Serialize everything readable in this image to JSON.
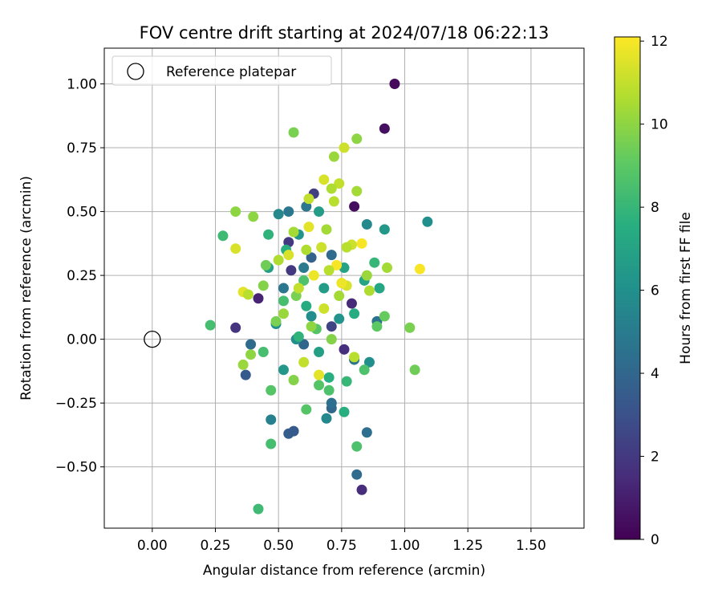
{
  "chart_data": {
    "type": "scatter",
    "title": "FOV centre drift starting at 2024/07/18 06:22:13",
    "xlabel": "Angular distance from reference (arcmin)",
    "ylabel": "Rotation from reference (arcmin)",
    "xlim": [
      -0.19,
      1.71
    ],
    "ylim": [
      -0.74,
      1.14
    ],
    "x_ticks": [
      "0.00",
      "0.25",
      "0.50",
      "0.75",
      "1.00",
      "1.25",
      "1.50"
    ],
    "y_ticks": [
      "−0.50",
      "−0.25",
      "0.00",
      "0.25",
      "0.50",
      "0.75",
      "1.00"
    ],
    "grid": true,
    "legend": {
      "placement": "top-left",
      "entries": [
        "Reference platepar"
      ]
    },
    "reference_point": {
      "x": 0.0,
      "y": 0.0,
      "label": "Reference platepar"
    },
    "colorbar": {
      "label": "Hours from first FF file",
      "min": 0,
      "max": 12.1,
      "ticks": [
        "0",
        "2",
        "4",
        "6",
        "8",
        "10",
        "12"
      ],
      "colormap": "viridis"
    },
    "points": [
      {
        "x": 0.96,
        "y": 1.0,
        "c": 0.3
      },
      {
        "x": 0.92,
        "y": 0.825,
        "c": 0.5
      },
      {
        "x": 0.8,
        "y": 0.52,
        "c": 0.4
      },
      {
        "x": 0.42,
        "y": 0.16,
        "c": 1.2
      },
      {
        "x": 0.33,
        "y": 0.045,
        "c": 1.8
      },
      {
        "x": 0.83,
        "y": -0.59,
        "c": 1.5
      },
      {
        "x": 0.54,
        "y": 0.38,
        "c": 2.0
      },
      {
        "x": 0.64,
        "y": 0.57,
        "c": 2.2
      },
      {
        "x": 0.76,
        "y": -0.04,
        "c": 1.6
      },
      {
        "x": 0.71,
        "y": 0.05,
        "c": 2.4
      },
      {
        "x": 0.55,
        "y": 0.27,
        "c": 2.0
      },
      {
        "x": 0.79,
        "y": 0.14,
        "c": 1.4
      },
      {
        "x": 0.37,
        "y": -0.14,
        "c": 3.4
      },
      {
        "x": 0.54,
        "y": -0.37,
        "c": 3.6
      },
      {
        "x": 0.56,
        "y": -0.36,
        "c": 3.4
      },
      {
        "x": 0.81,
        "y": -0.53,
        "c": 4.2
      },
      {
        "x": 0.85,
        "y": -0.365,
        "c": 4.4
      },
      {
        "x": 0.8,
        "y": -0.08,
        "c": 4.6
      },
      {
        "x": 0.71,
        "y": -0.27,
        "c": 4.0
      },
      {
        "x": 0.71,
        "y": -0.25,
        "c": 4.4
      },
      {
        "x": 0.39,
        "y": -0.02,
        "c": 4.2
      },
      {
        "x": 0.54,
        "y": 0.5,
        "c": 4.8
      },
      {
        "x": 0.61,
        "y": 0.52,
        "c": 4.8
      },
      {
        "x": 0.89,
        "y": 0.07,
        "c": 4.5
      },
      {
        "x": 0.63,
        "y": 0.32,
        "c": 3.8
      },
      {
        "x": 0.71,
        "y": 0.33,
        "c": 4.2
      },
      {
        "x": 0.52,
        "y": 0.2,
        "c": 4.8
      },
      {
        "x": 0.6,
        "y": -0.02,
        "c": 4.0
      },
      {
        "x": 0.47,
        "y": -0.315,
        "c": 5.2
      },
      {
        "x": 0.69,
        "y": -0.31,
        "c": 5.6
      },
      {
        "x": 0.85,
        "y": 0.45,
        "c": 5.6
      },
      {
        "x": 0.5,
        "y": 0.49,
        "c": 5.6
      },
      {
        "x": 0.6,
        "y": 0.28,
        "c": 5.0
      },
      {
        "x": 0.86,
        "y": -0.09,
        "c": 6.0
      },
      {
        "x": 0.57,
        "y": 0.0,
        "c": 6.0
      },
      {
        "x": 1.09,
        "y": 0.46,
        "c": 6.0
      },
      {
        "x": 0.92,
        "y": 0.43,
        "c": 6.4
      },
      {
        "x": 0.58,
        "y": 0.41,
        "c": 6.2
      },
      {
        "x": 0.66,
        "y": 0.5,
        "c": 6.6
      },
      {
        "x": 0.74,
        "y": 0.08,
        "c": 6.2
      },
      {
        "x": 0.63,
        "y": 0.09,
        "c": 5.8
      },
      {
        "x": 0.49,
        "y": 0.06,
        "c": 6.0
      },
      {
        "x": 0.68,
        "y": 0.2,
        "c": 6.6
      },
      {
        "x": 0.52,
        "y": -0.12,
        "c": 6.4
      },
      {
        "x": 0.46,
        "y": 0.28,
        "c": 6.8
      },
      {
        "x": 0.76,
        "y": 0.28,
        "c": 7.0
      },
      {
        "x": 0.84,
        "y": 0.23,
        "c": 7.0
      },
      {
        "x": 0.66,
        "y": -0.05,
        "c": 6.8
      },
      {
        "x": 0.9,
        "y": 0.2,
        "c": 7.2
      },
      {
        "x": 0.8,
        "y": 0.1,
        "c": 7.4
      },
      {
        "x": 0.76,
        "y": -0.285,
        "c": 7.6
      },
      {
        "x": 0.61,
        "y": 0.13,
        "c": 7.4
      },
      {
        "x": 0.46,
        "y": 0.41,
        "c": 7.8
      },
      {
        "x": 0.77,
        "y": -0.165,
        "c": 8.0
      },
      {
        "x": 0.53,
        "y": 0.35,
        "c": 7.6
      },
      {
        "x": 0.7,
        "y": -0.15,
        "c": 7.6
      },
      {
        "x": 0.58,
        "y": 0.01,
        "c": 7.8
      },
      {
        "x": 0.88,
        "y": 0.3,
        "c": 8.0
      },
      {
        "x": 0.44,
        "y": -0.05,
        "c": 8.4
      },
      {
        "x": 0.47,
        "y": -0.41,
        "c": 8.4
      },
      {
        "x": 0.42,
        "y": -0.665,
        "c": 8.2
      },
      {
        "x": 0.23,
        "y": 0.055,
        "c": 8.4
      },
      {
        "x": 0.28,
        "y": 0.405,
        "c": 8.2
      },
      {
        "x": 0.84,
        "y": -0.12,
        "c": 8.6
      },
      {
        "x": 0.81,
        "y": -0.42,
        "c": 8.6
      },
      {
        "x": 0.7,
        "y": -0.2,
        "c": 8.6
      },
      {
        "x": 0.61,
        "y": -0.275,
        "c": 8.8
      },
      {
        "x": 0.52,
        "y": 0.15,
        "c": 8.4
      },
      {
        "x": 0.6,
        "y": 0.23,
        "c": 8.6
      },
      {
        "x": 0.65,
        "y": 0.04,
        "c": 8.8
      },
      {
        "x": 0.66,
        "y": -0.18,
        "c": 8.8
      },
      {
        "x": 0.47,
        "y": -0.2,
        "c": 8.8
      },
      {
        "x": 0.89,
        "y": 0.05,
        "c": 9.0
      },
      {
        "x": 1.04,
        "y": -0.12,
        "c": 9.4
      },
      {
        "x": 1.02,
        "y": 0.045,
        "c": 9.6
      },
      {
        "x": 0.92,
        "y": 0.09,
        "c": 9.2
      },
      {
        "x": 0.56,
        "y": 0.81,
        "c": 9.6
      },
      {
        "x": 0.81,
        "y": 0.785,
        "c": 10.0
      },
      {
        "x": 0.72,
        "y": 0.715,
        "c": 10.2
      },
      {
        "x": 0.33,
        "y": 0.5,
        "c": 10.0
      },
      {
        "x": 0.4,
        "y": 0.48,
        "c": 10.0
      },
      {
        "x": 0.44,
        "y": 0.21,
        "c": 9.8
      },
      {
        "x": 0.39,
        "y": -0.06,
        "c": 10.0
      },
      {
        "x": 0.36,
        "y": -0.1,
        "c": 10.2
      },
      {
        "x": 0.76,
        "y": 0.75,
        "c": 11.2
      },
      {
        "x": 0.81,
        "y": 0.58,
        "c": 10.4
      },
      {
        "x": 0.74,
        "y": 0.61,
        "c": 11.0
      },
      {
        "x": 0.68,
        "y": 0.625,
        "c": 11.4
      },
      {
        "x": 0.71,
        "y": 0.59,
        "c": 10.6
      },
      {
        "x": 0.72,
        "y": 0.54,
        "c": 10.8
      },
      {
        "x": 0.33,
        "y": 0.355,
        "c": 11.4
      },
      {
        "x": 0.36,
        "y": 0.185,
        "c": 11.6
      },
      {
        "x": 0.38,
        "y": 0.175,
        "c": 10.8
      },
      {
        "x": 1.06,
        "y": 0.275,
        "c": 12.0
      },
      {
        "x": 0.83,
        "y": 0.375,
        "c": 12.0
      },
      {
        "x": 0.79,
        "y": 0.37,
        "c": 11.2
      },
      {
        "x": 0.62,
        "y": 0.44,
        "c": 11.6
      },
      {
        "x": 0.56,
        "y": 0.42,
        "c": 10.4
      },
      {
        "x": 0.5,
        "y": 0.31,
        "c": 10.6
      },
      {
        "x": 0.64,
        "y": 0.25,
        "c": 11.8
      },
      {
        "x": 0.73,
        "y": 0.29,
        "c": 12.0
      },
      {
        "x": 0.77,
        "y": 0.21,
        "c": 11.4
      },
      {
        "x": 0.85,
        "y": 0.25,
        "c": 10.2
      },
      {
        "x": 0.52,
        "y": 0.1,
        "c": 10.2
      },
      {
        "x": 0.66,
        "y": -0.14,
        "c": 11.6
      },
      {
        "x": 0.45,
        "y": 0.29,
        "c": 9.4
      },
      {
        "x": 0.57,
        "y": 0.17,
        "c": 9.6
      },
      {
        "x": 0.8,
        "y": -0.07,
        "c": 10.8
      },
      {
        "x": 0.67,
        "y": 0.36,
        "c": 11.2
      },
      {
        "x": 0.62,
        "y": 0.55,
        "c": 11.0
      },
      {
        "x": 0.54,
        "y": 0.33,
        "c": 11.4
      },
      {
        "x": 0.68,
        "y": 0.12,
        "c": 11.2
      },
      {
        "x": 0.58,
        "y": 0.2,
        "c": 11.0
      },
      {
        "x": 0.74,
        "y": 0.17,
        "c": 10.4
      },
      {
        "x": 0.63,
        "y": 0.05,
        "c": 10.0
      },
      {
        "x": 0.56,
        "y": -0.16,
        "c": 9.8
      },
      {
        "x": 0.49,
        "y": 0.07,
        "c": 9.6
      },
      {
        "x": 0.75,
        "y": 0.22,
        "c": 11.8
      },
      {
        "x": 0.61,
        "y": 0.35,
        "c": 10.6
      },
      {
        "x": 0.7,
        "y": 0.27,
        "c": 10.8
      },
      {
        "x": 0.93,
        "y": 0.28,
        "c": 10.4
      },
      {
        "x": 0.86,
        "y": 0.19,
        "c": 10.6
      },
      {
        "x": 0.6,
        "y": -0.09,
        "c": 11.0
      },
      {
        "x": 0.71,
        "y": 0.0,
        "c": 9.8
      },
      {
        "x": 0.69,
        "y": 0.43,
        "c": 10.4
      },
      {
        "x": 0.77,
        "y": 0.36,
        "c": 10.8
      }
    ]
  }
}
